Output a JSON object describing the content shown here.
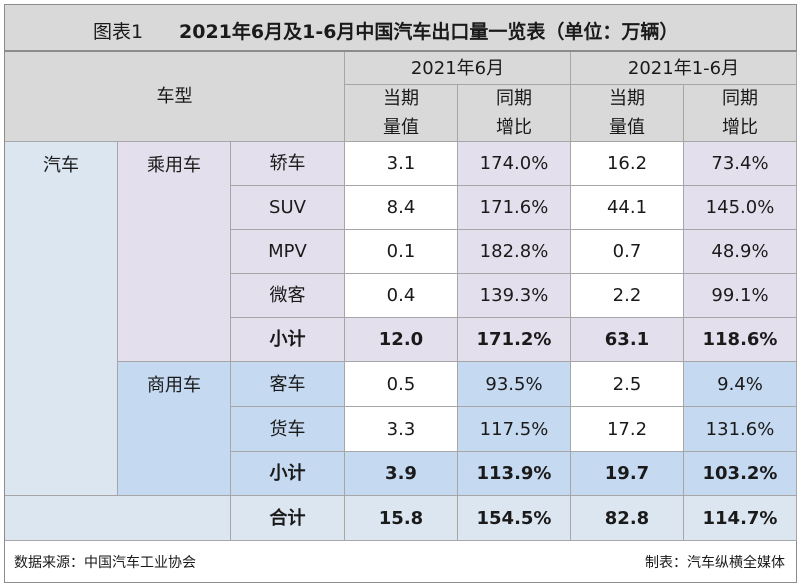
{
  "title": {
    "prefix": "图表1",
    "main": "2021年6月及1-6月中国汽车出口量一览表（单位：万辆）"
  },
  "header": {
    "vehicle_type": "车型",
    "period_june": "2021年6月",
    "period_h1": "2021年1-6月",
    "volume_line1": "当期",
    "volume_line2": "量值",
    "yoy_line1": "同期",
    "yoy_line2": "增比"
  },
  "groups": {
    "level1": "汽车",
    "passenger": "乘用车",
    "commercial": "商用车",
    "total": "合计"
  },
  "rows": [
    {
      "name": "轿车",
      "june_volume": "3.1",
      "june_yoy": "174.0%",
      "h1_volume": "16.2",
      "h1_yoy": "73.4%"
    },
    {
      "name": "SUV",
      "june_volume": "8.4",
      "june_yoy": "171.6%",
      "h1_volume": "44.1",
      "h1_yoy": "145.0%"
    },
    {
      "name": "MPV",
      "june_volume": "0.1",
      "june_yoy": "182.8%",
      "h1_volume": "0.7",
      "h1_yoy": "48.9%"
    },
    {
      "name": "微客",
      "june_volume": "0.4",
      "june_yoy": "139.3%",
      "h1_volume": "2.2",
      "h1_yoy": "99.1%"
    },
    {
      "name": "小计",
      "june_volume": "12.0",
      "june_yoy": "171.2%",
      "h1_volume": "63.1",
      "h1_yoy": "118.6%"
    },
    {
      "name": "客车",
      "june_volume": "0.5",
      "june_yoy": "93.5%",
      "h1_volume": "2.5",
      "h1_yoy": "9.4%"
    },
    {
      "name": "货车",
      "june_volume": "3.3",
      "june_yoy": "117.5%",
      "h1_volume": "17.2",
      "h1_yoy": "131.6%"
    },
    {
      "name": "小计",
      "june_volume": "3.9",
      "june_yoy": "113.9%",
      "h1_volume": "19.7",
      "h1_yoy": "103.2%"
    },
    {
      "name": "合计",
      "june_volume": "15.8",
      "june_yoy": "154.5%",
      "h1_volume": "82.8",
      "h1_yoy": "114.7%"
    }
  ],
  "footer": {
    "source": "数据来源：中国汽车工业协会",
    "maker": "制表：汽车纵横全媒体"
  },
  "colors": {
    "header_bg": "#d9d9d9",
    "passenger_bg": "#e4dfec",
    "commercial_bg": "#c5d9f1",
    "car_bg": "#dce6f1",
    "border": "#a6a6a6"
  }
}
